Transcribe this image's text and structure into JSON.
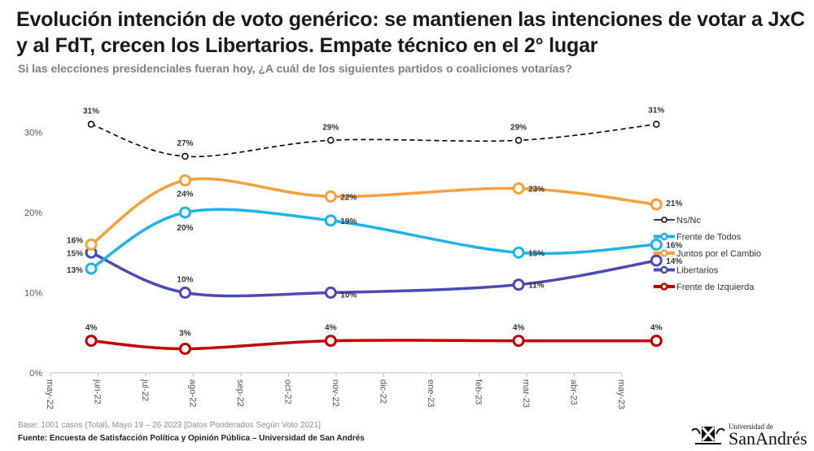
{
  "header": {
    "title": "Evolución intención de voto genérico: se mantienen las intenciones de votar a JxC y al FdT, crecen los Libertarios. Empate técnico en el 2° lugar",
    "subtitle": "Si las elecciones presidenciales fueran hoy, ¿A cuál de los siguientes partidos o coaliciones votarías?"
  },
  "chart_data": {
    "type": "line",
    "x": [
      "2022-05-27",
      "2022-07-26",
      "2022-10-27",
      "2023-02-24",
      "2023-05-23"
    ],
    "xticks": [
      "may-22",
      "jun-22",
      "jul-22",
      "ago-22",
      "sep-22",
      "oct-22",
      "nov-22",
      "dic-22",
      "ene-23",
      "feb-23",
      "mar-23",
      "abr-23",
      "may-23"
    ],
    "xlim": [
      "2022-05-01",
      "2023-05-01"
    ],
    "yticks": [
      "0%",
      "10%",
      "20%",
      "30%"
    ],
    "ylim": [
      0,
      33
    ],
    "grid": false,
    "legend": "right",
    "series": [
      {
        "name": "Ns/Nc",
        "values": [
          31,
          27,
          29,
          29,
          31
        ],
        "labels": [
          "31%",
          "27%",
          "29%",
          "29%",
          "31%"
        ],
        "color": "#000000",
        "dashed": true
      },
      {
        "name": "Frente de Todos",
        "values": [
          13,
          20,
          19,
          15,
          16
        ],
        "labels": [
          "13%",
          "20%",
          "19%",
          "15%",
          "16%"
        ],
        "color": "#1fb4e9"
      },
      {
        "name": "Juntos por el Cambio",
        "values": [
          16,
          24,
          22,
          23,
          21
        ],
        "labels": [
          "16%",
          "24%",
          "22%",
          "23%",
          "21%"
        ],
        "color": "#f7a03c"
      },
      {
        "name": "Libertarios",
        "values": [
          15,
          10,
          10,
          11,
          14
        ],
        "labels": [
          "15%",
          "10%",
          "10%",
          "11%",
          "14%"
        ],
        "color": "#4a4ab8"
      },
      {
        "name": "Frente de Izquierda",
        "values": [
          4,
          3,
          4,
          4,
          4
        ],
        "labels": [
          "4%",
          "3%",
          "4%",
          "4%",
          "4%"
        ],
        "color": "#c00000"
      }
    ]
  },
  "footer": {
    "base": "Base: 1001 casos (Total), Mayo 19 – 26 2023 [Datos Ponderados Según Voto 2021]",
    "source": "Fuente: Encuesta de Satisfacción Política y Opinión Pública – Universidad de San Andrés"
  },
  "logo": {
    "line1": "Universidad de",
    "line2": "SanAndrés"
  }
}
